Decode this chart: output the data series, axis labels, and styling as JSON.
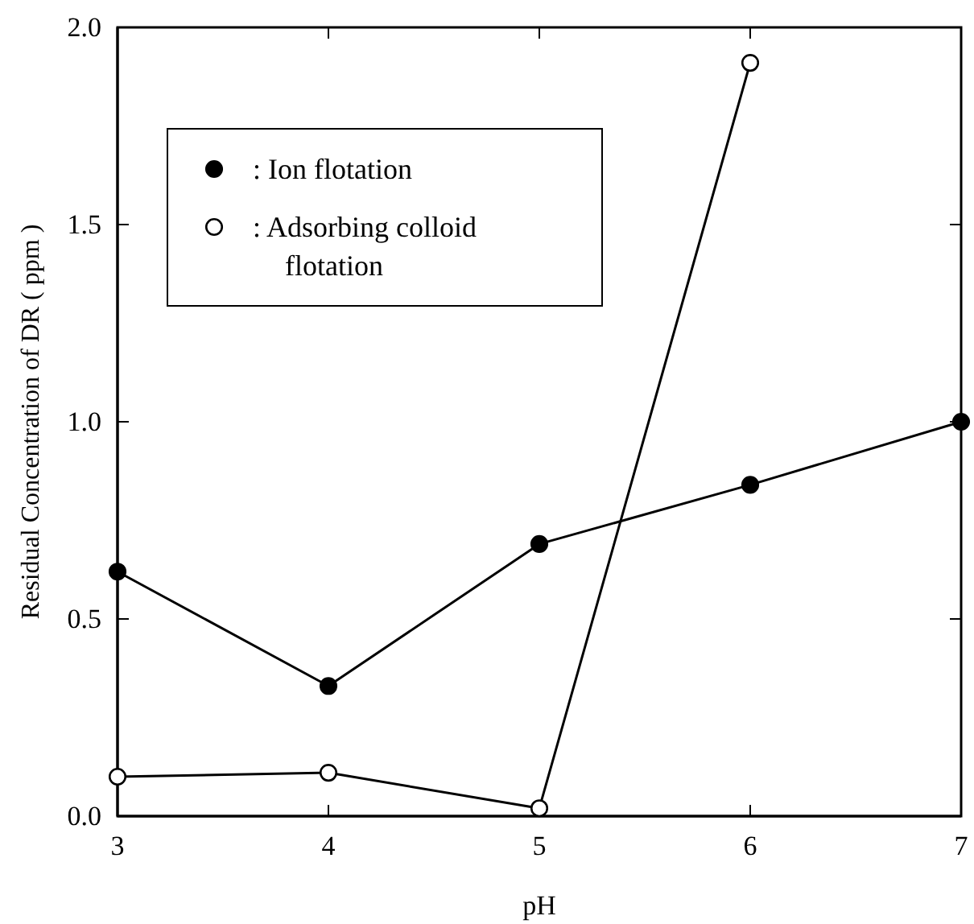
{
  "chart_data": {
    "type": "line",
    "xlabel": "pH",
    "ylabel": "Residual Concentration of DR ( ppm )",
    "xlim": [
      3,
      7
    ],
    "xticks": [
      3,
      4,
      5,
      6,
      7
    ],
    "ylim": [
      0,
      2
    ],
    "yticks": [
      {
        "value": 0,
        "label": "0.0"
      },
      {
        "value": 0.5,
        "label": "0.5"
      },
      {
        "value": 1,
        "label": "1.0"
      },
      {
        "value": 1.5,
        "label": "1.5"
      },
      {
        "value": 2,
        "label": "2.0"
      }
    ],
    "grid": false,
    "legend": "top left",
    "marker": "circle",
    "line_style": "solid",
    "series": [
      {
        "name": ": Ion flotation",
        "color": "#000000",
        "x": [
          3,
          4,
          5,
          6,
          7
        ],
        "values": [
          0.62,
          0.33,
          0.69,
          0.84,
          1.0
        ]
      },
      {
        "name": ": Adsorbing colloid flotation",
        "color": "#000000",
        "x": [
          3,
          4,
          5,
          6
        ],
        "values": [
          0.1,
          0.11,
          0.02,
          1.91
        ]
      }
    ]
  }
}
